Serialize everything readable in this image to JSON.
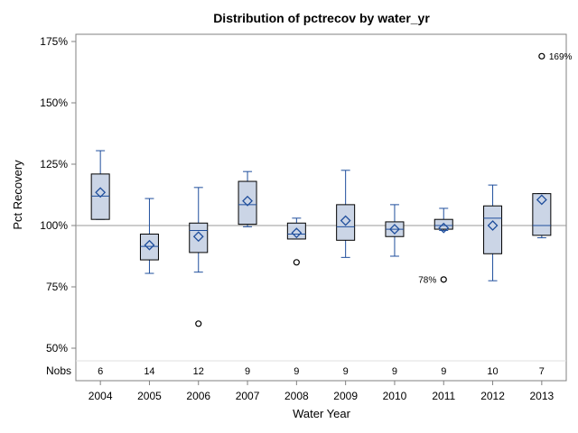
{
  "chart_data": {
    "type": "box",
    "title": "Distribution of pctrecov by water_yr",
    "xlabel": "Water Year",
    "ylabel": "Pct Recovery",
    "ylim": [
      44,
      179
    ],
    "yticks": [
      50,
      75,
      100,
      125,
      150,
      175
    ],
    "ytick_labels": [
      "50%",
      "75%",
      "100%",
      "125%",
      "150%",
      "175%"
    ],
    "reference_line": 100,
    "nobs_label": "Nobs",
    "categories": [
      "2004",
      "2005",
      "2006",
      "2007",
      "2008",
      "2009",
      "2010",
      "2011",
      "2012",
      "2013"
    ],
    "boxes": [
      {
        "year": "2004",
        "min": 102.5,
        "q1": 102.5,
        "median": 112,
        "q3": 121,
        "max": 130.5,
        "mean": 113.5,
        "nobs": "6",
        "outliers": []
      },
      {
        "year": "2005",
        "min": 80.5,
        "q1": 86,
        "median": 91.5,
        "q3": 96.5,
        "max": 111,
        "mean": 92,
        "nobs": "14",
        "outliers": []
      },
      {
        "year": "2006",
        "min": 81,
        "q1": 89,
        "median": 98,
        "q3": 101,
        "max": 115.5,
        "mean": 95.5,
        "nobs": "12",
        "outliers": [
          {
            "value": 60,
            "label": ""
          }
        ]
      },
      {
        "year": "2007",
        "min": 99.5,
        "q1": 100.5,
        "median": 108.5,
        "q3": 118,
        "max": 122,
        "mean": 110,
        "nobs": "9",
        "outliers": []
      },
      {
        "year": "2008",
        "min": 94.5,
        "q1": 94.5,
        "median": 96.5,
        "q3": 101,
        "max": 103,
        "mean": 97,
        "nobs": "9",
        "outliers": [
          {
            "value": 85,
            "label": ""
          }
        ]
      },
      {
        "year": "2009",
        "min": 87,
        "q1": 94,
        "median": 99.5,
        "q3": 108.5,
        "max": 122.5,
        "mean": 102,
        "nobs": "9",
        "outliers": []
      },
      {
        "year": "2010",
        "min": 87.5,
        "q1": 95.5,
        "median": 98.5,
        "q3": 101.5,
        "max": 108.5,
        "mean": 98.5,
        "nobs": "9",
        "outliers": []
      },
      {
        "year": "2011",
        "min": 98,
        "q1": 98.5,
        "median": 100,
        "q3": 102.5,
        "max": 107,
        "mean": 99,
        "nobs": "9",
        "outliers": [
          {
            "value": 78,
            "label": "78%"
          }
        ]
      },
      {
        "year": "2012",
        "min": 77.5,
        "q1": 88.5,
        "median": 103,
        "q3": 108,
        "max": 116.5,
        "mean": 100,
        "nobs": "10",
        "outliers": []
      },
      {
        "year": "2013",
        "min": 95,
        "q1": 96,
        "median": 100,
        "q3": 113,
        "max": 113,
        "mean": 110.5,
        "nobs": "7",
        "outliers": [
          {
            "value": 169,
            "label": "169%"
          }
        ]
      }
    ],
    "colors": {
      "box_fill": "#cbd5e6",
      "box_stroke": "#000000",
      "whisker": "#1f4e9c",
      "mean_marker": "#1f4e9c",
      "reference_line": "#9a9a9a",
      "axis": "#808080"
    },
    "grid": false,
    "legend": "none"
  }
}
